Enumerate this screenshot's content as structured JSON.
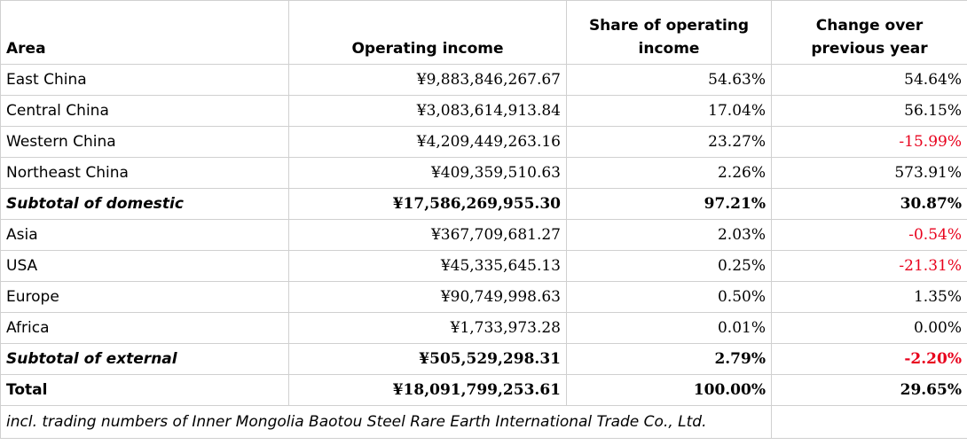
{
  "table": {
    "headers": {
      "area": "Area",
      "operating_income": "Operating income",
      "share": "Share of operating income",
      "change": "Change over previous year"
    },
    "rows": [
      {
        "area": "East China",
        "income": "¥9,883,846,267.67",
        "share": "54.63%",
        "change": "54.64%",
        "negative": false,
        "style": "normal"
      },
      {
        "area": "Central China",
        "income": "¥3,083,614,913.84",
        "share": "17.04%",
        "change": "56.15%",
        "negative": false,
        "style": "normal"
      },
      {
        "area": "Western China",
        "income": "¥4,209,449,263.16",
        "share": "23.27%",
        "change": "-15.99%",
        "negative": true,
        "style": "normal"
      },
      {
        "area": "Northeast China",
        "income": "¥409,359,510.63",
        "share": "2.26%",
        "change": "573.91%",
        "negative": false,
        "style": "normal"
      },
      {
        "area": "Subtotal of domestic",
        "income": "¥17,586,269,955.30",
        "share": "97.21%",
        "change": "30.87%",
        "negative": false,
        "style": "subtotal"
      },
      {
        "area": "Asia",
        "income": "¥367,709,681.27",
        "share": "2.03%",
        "change": "-0.54%",
        "negative": true,
        "style": "normal"
      },
      {
        "area": "USA",
        "income": "¥45,335,645.13",
        "share": "0.25%",
        "change": "-21.31%",
        "negative": true,
        "style": "normal"
      },
      {
        "area": "Europe",
        "income": "¥90,749,998.63",
        "share": "0.50%",
        "change": "1.35%",
        "negative": false,
        "style": "normal"
      },
      {
        "area": "Africa",
        "income": "¥1,733,973.28",
        "share": "0.01%",
        "change": "0.00%",
        "negative": false,
        "style": "normal"
      },
      {
        "area": "Subtotal of external",
        "income": "¥505,529,298.31",
        "share": "2.79%",
        "change": "-2.20%",
        "negative": true,
        "style": "subtotal"
      },
      {
        "area": "Total",
        "income": "¥18,091,799,253.61",
        "share": "100.00%",
        "change": "29.65%",
        "negative": false,
        "style": "total"
      }
    ],
    "note": "incl. trading numbers of Inner Mongolia Baotou Steel Rare Earth International Trade Co., Ltd."
  },
  "colors": {
    "negative": "#e8001c",
    "gridline": "#d0d0d0"
  }
}
